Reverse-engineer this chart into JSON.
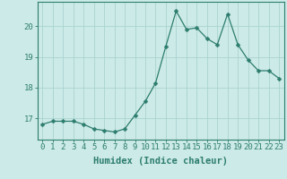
{
  "x": [
    0,
    1,
    2,
    3,
    4,
    5,
    6,
    7,
    8,
    9,
    10,
    11,
    12,
    13,
    14,
    15,
    16,
    17,
    18,
    19,
    20,
    21,
    22,
    23
  ],
  "y": [
    16.8,
    16.9,
    16.9,
    16.9,
    16.8,
    16.65,
    16.6,
    16.55,
    16.65,
    17.1,
    17.55,
    18.15,
    19.35,
    20.5,
    19.9,
    19.95,
    19.6,
    19.4,
    20.4,
    19.4,
    18.9,
    18.55,
    18.55,
    18.3
  ],
  "line_color": "#2d7d6e",
  "marker": "D",
  "marker_size": 2.5,
  "bg_color": "#cceae7",
  "grid_color": "#aad4d0",
  "xlabel": "Humidex (Indice chaleur)",
  "xlabel_fontsize": 7.5,
  "tick_fontsize": 6.5,
  "ytick_labels": [
    "17",
    "18",
    "19",
    "20"
  ],
  "ytick_values": [
    17,
    18,
    19,
    20
  ],
  "ylim": [
    16.3,
    20.8
  ],
  "xlim": [
    -0.5,
    23.5
  ],
  "axis_color": "#2d7d6e"
}
